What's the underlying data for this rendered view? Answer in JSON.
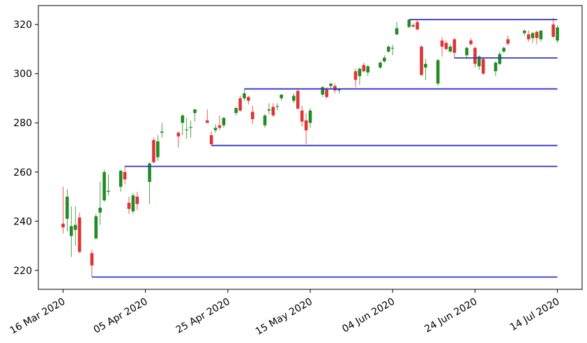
{
  "chart_data": {
    "type": "candlestick",
    "x": [
      "2020-03-16",
      "2020-03-17",
      "2020-03-18",
      "2020-03-19",
      "2020-03-20",
      "2020-03-23",
      "2020-03-24",
      "2020-03-25",
      "2020-03-26",
      "2020-03-27",
      "2020-03-30",
      "2020-03-31",
      "2020-04-01",
      "2020-04-02",
      "2020-04-03",
      "2020-04-06",
      "2020-04-07",
      "2020-04-08",
      "2020-04-09",
      "2020-04-13",
      "2020-04-14",
      "2020-04-15",
      "2020-04-16",
      "2020-04-17",
      "2020-04-20",
      "2020-04-21",
      "2020-04-22",
      "2020-04-23",
      "2020-04-24",
      "2020-04-27",
      "2020-04-28",
      "2020-04-29",
      "2020-04-30",
      "2020-05-01",
      "2020-05-04",
      "2020-05-05",
      "2020-05-06",
      "2020-05-07",
      "2020-05-08",
      "2020-05-11",
      "2020-05-12",
      "2020-05-13",
      "2020-05-14",
      "2020-05-15",
      "2020-05-18",
      "2020-05-19",
      "2020-05-20",
      "2020-05-21",
      "2020-05-22",
      "2020-05-26",
      "2020-05-27",
      "2020-05-28",
      "2020-05-29",
      "2020-06-01",
      "2020-06-02",
      "2020-06-03",
      "2020-06-04",
      "2020-06-05",
      "2020-06-08",
      "2020-06-09",
      "2020-06-10",
      "2020-06-11",
      "2020-06-12",
      "2020-06-15",
      "2020-06-16",
      "2020-06-17",
      "2020-06-18",
      "2020-06-19",
      "2020-06-22",
      "2020-06-23",
      "2020-06-24",
      "2020-06-25",
      "2020-06-26",
      "2020-06-29",
      "2020-06-30",
      "2020-07-01",
      "2020-07-02",
      "2020-07-06",
      "2020-07-07",
      "2020-07-08",
      "2020-07-09",
      "2020-07-10",
      "2020-07-13",
      "2020-07-14"
    ],
    "open": [
      239,
      241,
      234,
      236.5,
      241.5,
      227,
      233,
      243.5,
      248.5,
      252,
      254,
      260,
      247.5,
      244,
      250,
      256,
      273,
      266,
      276,
      276,
      280,
      277,
      278,
      284,
      281,
      275,
      277,
      279,
      279,
      284,
      290,
      290,
      290.5,
      284.5,
      279,
      285,
      286.5,
      286.5,
      290,
      289,
      293,
      285,
      281,
      280,
      291.5,
      293.5,
      295,
      295,
      293.2,
      301,
      299,
      303.5,
      300.5,
      302.5,
      305,
      309,
      310.2,
      316,
      319,
      319.8,
      321,
      311,
      302.5,
      296,
      313.5,
      312.5,
      309,
      314,
      307.5,
      313.5,
      310.5,
      303,
      306,
      301,
      304,
      309,
      314,
      316.5,
      316,
      314.5,
      317,
      314,
      320,
      313.5
    ],
    "high": [
      254,
      253,
      246,
      246,
      243.5,
      228.5,
      243,
      256,
      261,
      259,
      261,
      262.3,
      250,
      251.5,
      252,
      264,
      274,
      275,
      280,
      276.5,
      283.5,
      282,
      281,
      285.5,
      285.5,
      276.5,
      279.5,
      283,
      282.5,
      286.5,
      291,
      293.8,
      291,
      287,
      283.5,
      288,
      288,
      288,
      291.5,
      292,
      293.8,
      287,
      284,
      286,
      295,
      294.5,
      296,
      296,
      294,
      302,
      302.5,
      304.5,
      303.5,
      305,
      307.5,
      311.5,
      311.8,
      321,
      322,
      320.5,
      322,
      311.5,
      306,
      306,
      315,
      313.5,
      312,
      314.5,
      311,
      314.5,
      311,
      307.5,
      306.5,
      305,
      309,
      311,
      315.5,
      318,
      317.5,
      317,
      317.5,
      317.8,
      322.7,
      319.8
    ],
    "low": [
      235,
      236,
      225.5,
      230,
      227,
      217.3,
      232.5,
      238.5,
      248,
      250.5,
      252,
      255,
      243,
      243,
      244.5,
      247,
      263.5,
      264.5,
      274,
      270,
      275,
      273.5,
      274,
      280.5,
      280,
      270.8,
      276,
      277,
      278,
      283,
      284.5,
      289,
      287.5,
      279.5,
      278,
      283.5,
      282.5,
      285,
      289,
      288,
      285.5,
      278.5,
      271.5,
      278,
      290.5,
      290,
      294,
      292,
      292,
      294.5,
      295.5,
      300.5,
      299,
      302,
      304.5,
      308.5,
      307.5,
      315.5,
      318.5,
      318.8,
      317.5,
      299,
      297.5,
      295,
      307,
      309.5,
      308.5,
      306.4,
      306,
      311.5,
      302.5,
      301.5,
      299.5,
      299,
      303.5,
      308.5,
      311.5,
      315.5,
      313,
      312.5,
      312,
      313,
      314.5,
      312.5
    ],
    "close": [
      237.5,
      250,
      238,
      238.5,
      227.5,
      222,
      242,
      245.5,
      260,
      252.4,
      260.5,
      257,
      245,
      250.5,
      247,
      263.5,
      264,
      272.5,
      276.5,
      274.5,
      283,
      277.3,
      278.3,
      285.5,
      280,
      271.3,
      278,
      278,
      282,
      286,
      285,
      292,
      289,
      281.5,
      283,
      285.5,
      283,
      286.8,
      291.5,
      291,
      285.8,
      280.5,
      277,
      285,
      294.5,
      290.5,
      296,
      293.2,
      293.8,
      297.5,
      302,
      301,
      303,
      304.5,
      306.5,
      311,
      310.5,
      318.5,
      322,
      319.2,
      318,
      299.5,
      304,
      305.5,
      311,
      310,
      311,
      308.5,
      310.5,
      312,
      304,
      307,
      300,
      304.5,
      308,
      310.5,
      312.2,
      317.5,
      314,
      316.5,
      314.5,
      317.5,
      315,
      318.8
    ],
    "up_color": "#228b22",
    "down_color": "#e03333",
    "levels": [
      {
        "value": 217.3,
        "start": "2020-03-23",
        "end": "2020-07-14"
      },
      {
        "value": 262.3,
        "start": "2020-03-31",
        "end": "2020-07-14"
      },
      {
        "value": 270.8,
        "start": "2020-04-21",
        "end": "2020-07-14"
      },
      {
        "value": 293.8,
        "start": "2020-04-29",
        "end": "2020-07-14"
      },
      {
        "value": 306.4,
        "start": "2020-06-19",
        "end": "2020-07-14"
      },
      {
        "value": 322,
        "start": "2020-06-08",
        "end": "2020-07-14"
      }
    ],
    "level_color": "#3333cc",
    "xlim": [
      "2020-03-10",
      "2020-07-20"
    ],
    "xticks": [
      {
        "value": "2020-03-16",
        "label": "16 Mar 2020"
      },
      {
        "value": "2020-04-05",
        "label": "05 Apr 2020"
      },
      {
        "value": "2020-04-25",
        "label": "25 Apr 2020"
      },
      {
        "value": "2020-05-15",
        "label": "15 May 2020"
      },
      {
        "value": "2020-06-04",
        "label": "04 Jun 2020"
      },
      {
        "value": "2020-06-24",
        "label": "24 Jun 2020"
      },
      {
        "value": "2020-07-14",
        "label": "14 Jul 2020"
      }
    ],
    "ylim": [
      212.3,
      327.7
    ],
    "yticks": [
      220,
      240,
      260,
      280,
      300,
      320
    ]
  }
}
